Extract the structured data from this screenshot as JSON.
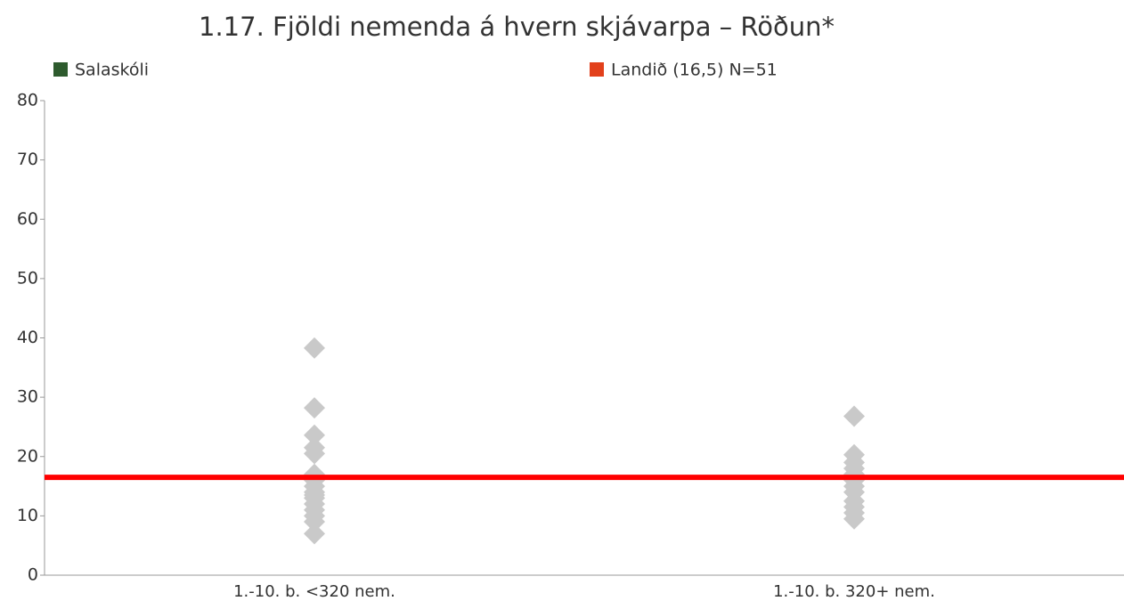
{
  "chart_data": {
    "type": "scatter",
    "title": "1.17. Fjöldi nemenda á hvern skjávarpa – Röðun*",
    "categories": [
      "1.-10. b. <320 nem.",
      "1.-10. b. 320+ nem."
    ],
    "series": [
      {
        "name": "Salaskóli",
        "color": "#2e5b2e",
        "values": [
          null,
          null
        ]
      }
    ],
    "points": {
      "color": "#c9c9c9",
      "values": [
        [
          38.3,
          28.2,
          23.6,
          21.5,
          20.5,
          17,
          16,
          15,
          14,
          13.5,
          13,
          12,
          11,
          10,
          9,
          7
        ],
        [
          26.8,
          20.3,
          19,
          18,
          17,
          16,
          15,
          14,
          12.5,
          11.5,
          10.5,
          9.5
        ]
      ]
    },
    "reference_line": {
      "name": "Landið (16,5) N=51",
      "value": 16.5,
      "color": "#ff0000",
      "legend_color": "#e2401b"
    },
    "ylim": [
      0,
      80
    ],
    "yticks": [
      0,
      10,
      20,
      30,
      40,
      50,
      60,
      70,
      80
    ]
  }
}
